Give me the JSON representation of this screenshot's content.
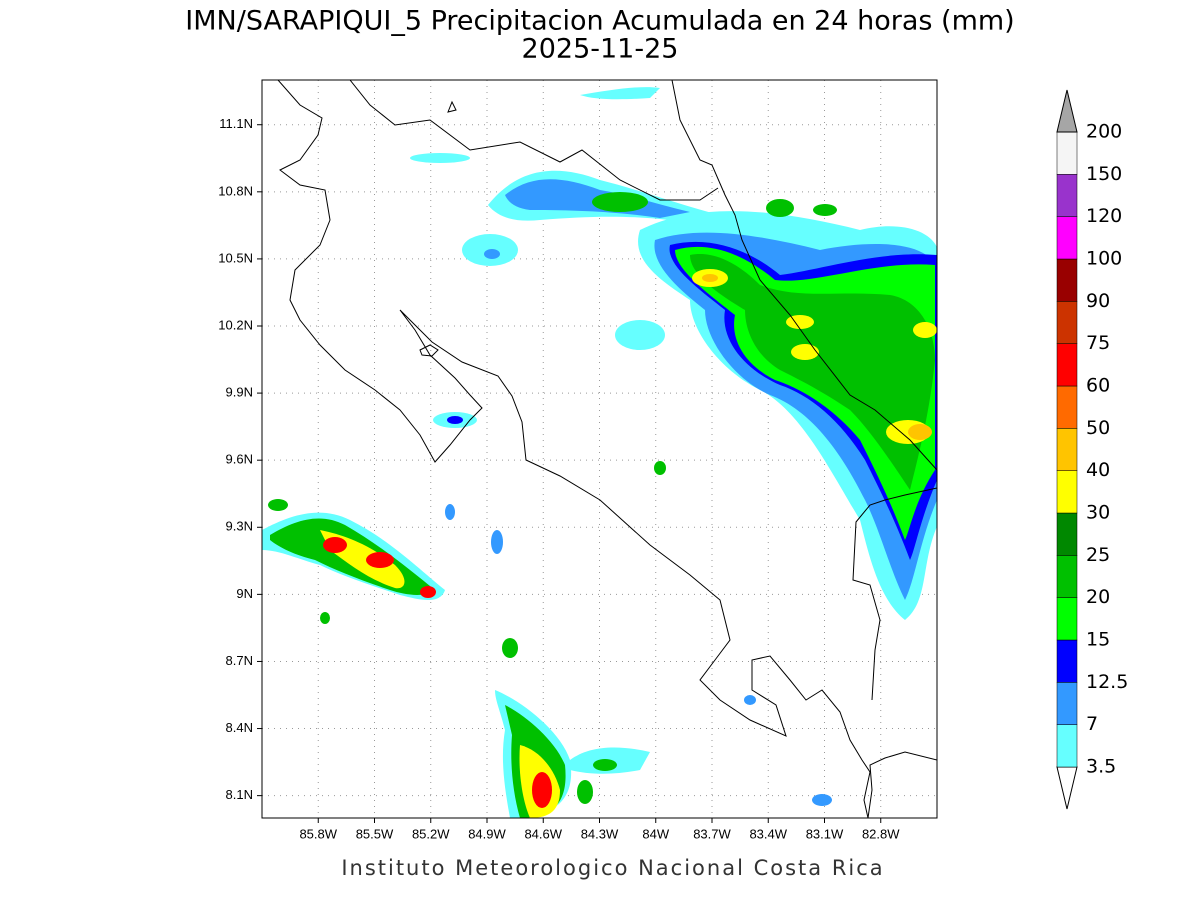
{
  "title": "IMN/SARAPIQUI_5 Precipitacion Acumulada en 24 horas (mm)",
  "subtitle": "2025-11-25",
  "footer": "Instituto Meteorologico Nacional Costa Rica",
  "map": {
    "lonlim": [
      -86.1,
      -82.5
    ],
    "latlim": [
      8.0,
      11.3
    ],
    "grid": true,
    "lonticks": [
      {
        "value": -85.8,
        "label": "85.8W"
      },
      {
        "value": -85.5,
        "label": "85.5W"
      },
      {
        "value": -85.2,
        "label": "85.2W"
      },
      {
        "value": -84.9,
        "label": "84.9W"
      },
      {
        "value": -84.6,
        "label": "84.6W"
      },
      {
        "value": -84.3,
        "label": "84.3W"
      },
      {
        "value": -84.0,
        "label": "84W"
      },
      {
        "value": -83.7,
        "label": "83.7W"
      },
      {
        "value": -83.4,
        "label": "83.4W"
      },
      {
        "value": -83.1,
        "label": "83.1W"
      },
      {
        "value": -82.8,
        "label": "82.8W"
      }
    ],
    "latticks": [
      {
        "value": 8.1,
        "label": "8.1N"
      },
      {
        "value": 8.4,
        "label": "8.4N"
      },
      {
        "value": 8.7,
        "label": "8.7N"
      },
      {
        "value": 9.0,
        "label": "9N"
      },
      {
        "value": 9.3,
        "label": "9.3N"
      },
      {
        "value": 9.6,
        "label": "9.6N"
      },
      {
        "value": 9.9,
        "label": "9.9N"
      },
      {
        "value": 10.2,
        "label": "10.2N"
      },
      {
        "value": 10.5,
        "label": "10.5N"
      },
      {
        "value": 10.8,
        "label": "10.8N"
      },
      {
        "value": 11.1,
        "label": "11.1N"
      }
    ]
  },
  "colorbar": {
    "levels": [
      3.5,
      7,
      12.5,
      15,
      20,
      25,
      30,
      40,
      50,
      60,
      75,
      90,
      100,
      120,
      150,
      200
    ],
    "colors": [
      "#ffffff",
      "#66ffff",
      "#3399ff",
      "#0000ff",
      "#00ff00",
      "#00c000",
      "#008800",
      "#ffff00",
      "#ffc400",
      "#ff6a00",
      "#ff0000",
      "#cc3300",
      "#990000",
      "#ff00ff",
      "#9933cc",
      "#f5f5f5",
      "#a6a6a6"
    ]
  }
}
